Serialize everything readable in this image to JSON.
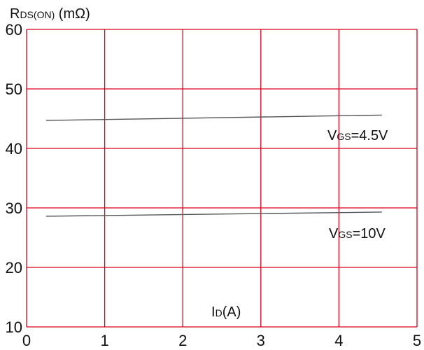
{
  "chart_data": {
    "type": "line",
    "ylabel": {
      "main": "R",
      "sub": "DS(ON)",
      "unit": " (mΩ)"
    },
    "xlabel": {
      "main": "I",
      "sub": "D",
      "unit": "(A)"
    },
    "xlim": [
      0,
      5
    ],
    "ylim": [
      10,
      60
    ],
    "x_ticks": [
      0,
      1,
      2,
      3,
      4,
      5
    ],
    "y_ticks": [
      10,
      20,
      30,
      40,
      50,
      60
    ],
    "grid": true,
    "colors": {
      "grid": "#d9001b",
      "line": "#555555"
    },
    "series": [
      {
        "label": {
          "main": "V",
          "sub": "GS",
          "rest": "=4.5V"
        },
        "x": [
          0.25,
          4.55
        ],
        "y": [
          44.7,
          45.6
        ]
      },
      {
        "label": {
          "main": "V",
          "sub": "GS",
          "rest": "=10V"
        },
        "x": [
          0.25,
          4.55
        ],
        "y": [
          28.6,
          29.3
        ]
      }
    ]
  }
}
